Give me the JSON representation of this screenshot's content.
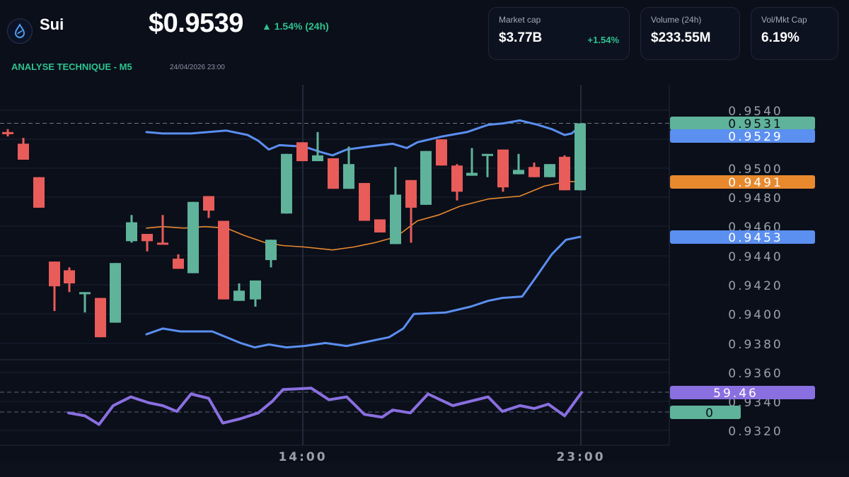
{
  "header": {
    "coin_name": "Sui",
    "logo_icon": "sui-droplet-icon",
    "price": "$0.9539",
    "change": "▲ 1.54% (24h)",
    "subtitle": "ANALYSE TECHNIQUE - M5",
    "timestamp": "24/04/2026 23:00"
  },
  "stats": [
    {
      "label": "Market cap",
      "value": "$3.77B",
      "change": "+1.54%"
    },
    {
      "label": "Volume (24h)",
      "value": "$233.55M"
    },
    {
      "label": "Vol/Mkt Cap",
      "value": "6.19%"
    }
  ],
  "colors": {
    "background": "#0b0f1a",
    "up": "#5fb39a",
    "down": "#e85c5a",
    "bollinger": "#5b8ff0",
    "ma": "#e8892e",
    "rsi": "#8a6fe0",
    "accent_green": "#2ec28e"
  },
  "chart_data": {
    "type": "candlestick",
    "title": "ANALYSE TECHNIQUE - M5",
    "xlabel": "",
    "ylabel": "",
    "x_ticks": [
      "14:00",
      "23:00"
    ],
    "y_ticks": [
      "0.9540",
      "0.9500",
      "0.9480",
      "0.9460",
      "0.9440",
      "0.9420",
      "0.9400",
      "0.9380",
      "0.9360",
      "0.9340",
      "0.9320"
    ],
    "ylim": [
      0.9315,
      0.9548
    ],
    "price_labels": [
      {
        "value": "0.9531",
        "series": "last price",
        "color": "#5fb39a"
      },
      {
        "value": "0.9529",
        "series": "bollinger upper",
        "color": "#5b8ff0"
      },
      {
        "value": "0.9491",
        "series": "moving average",
        "color": "#e8892e"
      },
      {
        "value": "0.9453",
        "series": "bollinger lower",
        "color": "#5b8ff0"
      },
      {
        "value": "59.46",
        "series": "RSI",
        "color": "#8a6fe0"
      },
      {
        "value": "0",
        "series": "volume",
        "color": "#5fb39a"
      }
    ],
    "candles": [
      {
        "x": 11,
        "o": 0.9525,
        "c": 0.9524,
        "h": 0.9527,
        "l": 0.9522
      },
      {
        "x": 33,
        "o": 0.9517,
        "c": 0.9506,
        "h": 0.9521,
        "l": 0.9506
      },
      {
        "x": 55,
        "o": 0.9494,
        "c": 0.9473,
        "h": 0.9494,
        "l": 0.9473
      },
      {
        "x": 77,
        "o": 0.9436,
        "c": 0.9419,
        "h": 0.9436,
        "l": 0.9402
      },
      {
        "x": 98,
        "o": 0.943,
        "c": 0.9421,
        "h": 0.9432,
        "l": 0.9415
      },
      {
        "x": 120,
        "o": 0.9415,
        "c": 0.9415,
        "h": 0.9415,
        "l": 0.9401
      },
      {
        "x": 142,
        "o": 0.9411,
        "c": 0.9384,
        "h": 0.9411,
        "l": 0.9384
      },
      {
        "x": 163,
        "o": 0.9394,
        "c": 0.9435,
        "h": 0.9435,
        "l": 0.9394
      },
      {
        "x": 186,
        "o": 0.945,
        "c": 0.9463,
        "h": 0.9468,
        "l": 0.9449
      },
      {
        "x": 208,
        "o": 0.9455,
        "c": 0.945,
        "h": 0.9455,
        "l": 0.9443
      },
      {
        "x": 230,
        "o": 0.9449,
        "c": 0.9448,
        "h": 0.9468,
        "l": 0.9448
      },
      {
        "x": 252,
        "o": 0.9438,
        "c": 0.9431,
        "h": 0.9441,
        "l": 0.9431
      },
      {
        "x": 273,
        "o": 0.9428,
        "c": 0.9477,
        "h": 0.9477,
        "l": 0.9428
      },
      {
        "x": 295,
        "o": 0.9481,
        "c": 0.9471,
        "h": 0.9481,
        "l": 0.9466
      },
      {
        "x": 316,
        "o": 0.9464,
        "c": 0.941,
        "h": 0.9464,
        "l": 0.941
      },
      {
        "x": 338,
        "o": 0.9409,
        "c": 0.9416,
        "h": 0.9421,
        "l": 0.9409
      },
      {
        "x": 361,
        "o": 0.941,
        "c": 0.9423,
        "h": 0.9423,
        "l": 0.9405
      },
      {
        "x": 383,
        "o": 0.9437,
        "c": 0.9451,
        "h": 0.9451,
        "l": 0.9432
      },
      {
        "x": 405,
        "o": 0.9469,
        "c": 0.951,
        "h": 0.951,
        "l": 0.9469
      },
      {
        "x": 427,
        "o": 0.9518,
        "c": 0.9505,
        "h": 0.9518,
        "l": 0.9505
      },
      {
        "x": 449,
        "o": 0.9505,
        "c": 0.9509,
        "h": 0.9525,
        "l": 0.9505
      },
      {
        "x": 471,
        "o": 0.9507,
        "c": 0.9486,
        "h": 0.9507,
        "l": 0.9486
      },
      {
        "x": 493,
        "o": 0.9486,
        "c": 0.9503,
        "h": 0.9515,
        "l": 0.9486
      },
      {
        "x": 515,
        "o": 0.949,
        "c": 0.9464,
        "h": 0.949,
        "l": 0.9464
      },
      {
        "x": 537,
        "o": 0.9465,
        "c": 0.9456,
        "h": 0.9465,
        "l": 0.9456
      },
      {
        "x": 559,
        "o": 0.9448,
        "c": 0.9482,
        "h": 0.9501,
        "l": 0.9448
      },
      {
        "x": 581,
        "o": 0.9492,
        "c": 0.9473,
        "h": 0.9492,
        "l": 0.9449
      },
      {
        "x": 602,
        "o": 0.9475,
        "c": 0.9512,
        "h": 0.9512,
        "l": 0.9475
      },
      {
        "x": 624,
        "o": 0.952,
        "c": 0.9502,
        "h": 0.952,
        "l": 0.9502
      },
      {
        "x": 646,
        "o": 0.9502,
        "c": 0.9484,
        "h": 0.9503,
        "l": 0.9478
      },
      {
        "x": 667,
        "o": 0.9495,
        "c": 0.9497,
        "h": 0.9514,
        "l": 0.9495
      },
      {
        "x": 689,
        "o": 0.951,
        "c": 0.951,
        "h": 0.951,
        "l": 0.9494
      },
      {
        "x": 711,
        "o": 0.9513,
        "c": 0.9487,
        "h": 0.9513,
        "l": 0.9484
      },
      {
        "x": 733,
        "o": 0.9496,
        "c": 0.9499,
        "h": 0.951,
        "l": 0.9496
      },
      {
        "x": 755,
        "o": 0.9501,
        "c": 0.9494,
        "h": 0.9504,
        "l": 0.9494
      },
      {
        "x": 777,
        "o": 0.9494,
        "c": 0.9503,
        "h": 0.9503,
        "l": 0.9494
      },
      {
        "x": 798,
        "o": 0.9508,
        "c": 0.9485,
        "h": 0.9509,
        "l": 0.9485
      },
      {
        "x": 820,
        "o": 0.9485,
        "c": 0.9531,
        "h": 0.9531,
        "l": 0.9485
      }
    ],
    "bollinger_upper": [
      [
        207,
        0.9525
      ],
      [
        230,
        0.9524
      ],
      [
        270,
        0.9524
      ],
      [
        320,
        0.9526
      ],
      [
        350,
        0.9523
      ],
      [
        365,
        0.9519
      ],
      [
        380,
        0.9513
      ],
      [
        395,
        0.9516
      ],
      [
        430,
        0.9515
      ],
      [
        455,
        0.9511
      ],
      [
        470,
        0.9509
      ],
      [
        490,
        0.9513
      ],
      [
        520,
        0.9515
      ],
      [
        555,
        0.9517
      ],
      [
        575,
        0.9514
      ],
      [
        590,
        0.9518
      ],
      [
        625,
        0.9522
      ],
      [
        660,
        0.9525
      ],
      [
        690,
        0.953
      ],
      [
        712,
        0.9531
      ],
      [
        735,
        0.9533
      ],
      [
        760,
        0.953
      ],
      [
        780,
        0.9527
      ],
      [
        798,
        0.9523
      ],
      [
        808,
        0.9524
      ],
      [
        820,
        0.9529
      ]
    ],
    "bollinger_lower": [
      [
        207,
        0.9386
      ],
      [
        230,
        0.939
      ],
      [
        255,
        0.9388
      ],
      [
        280,
        0.9388
      ],
      [
        300,
        0.9388
      ],
      [
        340,
        0.938
      ],
      [
        360,
        0.9377
      ],
      [
        380,
        0.9379
      ],
      [
        405,
        0.9377
      ],
      [
        430,
        0.9378
      ],
      [
        460,
        0.938
      ],
      [
        490,
        0.9378
      ],
      [
        520,
        0.9381
      ],
      [
        550,
        0.9384
      ],
      [
        570,
        0.939
      ],
      [
        585,
        0.94
      ],
      [
        630,
        0.9401
      ],
      [
        665,
        0.9405
      ],
      [
        690,
        0.9409
      ],
      [
        710,
        0.9411
      ],
      [
        738,
        0.9412
      ],
      [
        760,
        0.9427
      ],
      [
        780,
        0.9441
      ],
      [
        800,
        0.9451
      ],
      [
        820,
        0.9453
      ]
    ],
    "moving_average": [
      [
        207,
        0.9459
      ],
      [
        230,
        0.946
      ],
      [
        260,
        0.9459
      ],
      [
        290,
        0.946
      ],
      [
        320,
        0.9459
      ],
      [
        345,
        0.9454
      ],
      [
        375,
        0.9449
      ],
      [
        400,
        0.9447
      ],
      [
        430,
        0.9446
      ],
      [
        470,
        0.9444
      ],
      [
        500,
        0.9446
      ],
      [
        530,
        0.9449
      ],
      [
        560,
        0.9453
      ],
      [
        590,
        0.9464
      ],
      [
        620,
        0.9468
      ],
      [
        650,
        0.9474
      ],
      [
        690,
        0.9479
      ],
      [
        735,
        0.9481
      ],
      [
        770,
        0.9488
      ],
      [
        800,
        0.9491
      ],
      [
        820,
        0.9491
      ]
    ],
    "rsi": [
      [
        97,
        0.9332
      ],
      [
        120,
        0.933
      ],
      [
        140,
        0.9324
      ],
      [
        160,
        0.9337
      ],
      [
        185,
        0.9343
      ],
      [
        210,
        0.9339
      ],
      [
        230,
        0.9337
      ],
      [
        250,
        0.9333
      ],
      [
        270,
        0.9345
      ],
      [
        295,
        0.9342
      ],
      [
        315,
        0.9325
      ],
      [
        340,
        0.9328
      ],
      [
        365,
        0.9332
      ],
      [
        385,
        0.934
      ],
      [
        400,
        0.9348
      ],
      [
        440,
        0.9349
      ],
      [
        465,
        0.9341
      ],
      [
        490,
        0.9343
      ],
      [
        515,
        0.9331
      ],
      [
        540,
        0.9329
      ],
      [
        555,
        0.9334
      ],
      [
        580,
        0.9332
      ],
      [
        605,
        0.9345
      ],
      [
        640,
        0.9337
      ],
      [
        690,
        0.9343
      ],
      [
        710,
        0.9333
      ],
      [
        735,
        0.9337
      ],
      [
        755,
        0.9335
      ],
      [
        775,
        0.9338
      ],
      [
        798,
        0.933
      ],
      [
        822,
        0.9346
      ]
    ]
  }
}
